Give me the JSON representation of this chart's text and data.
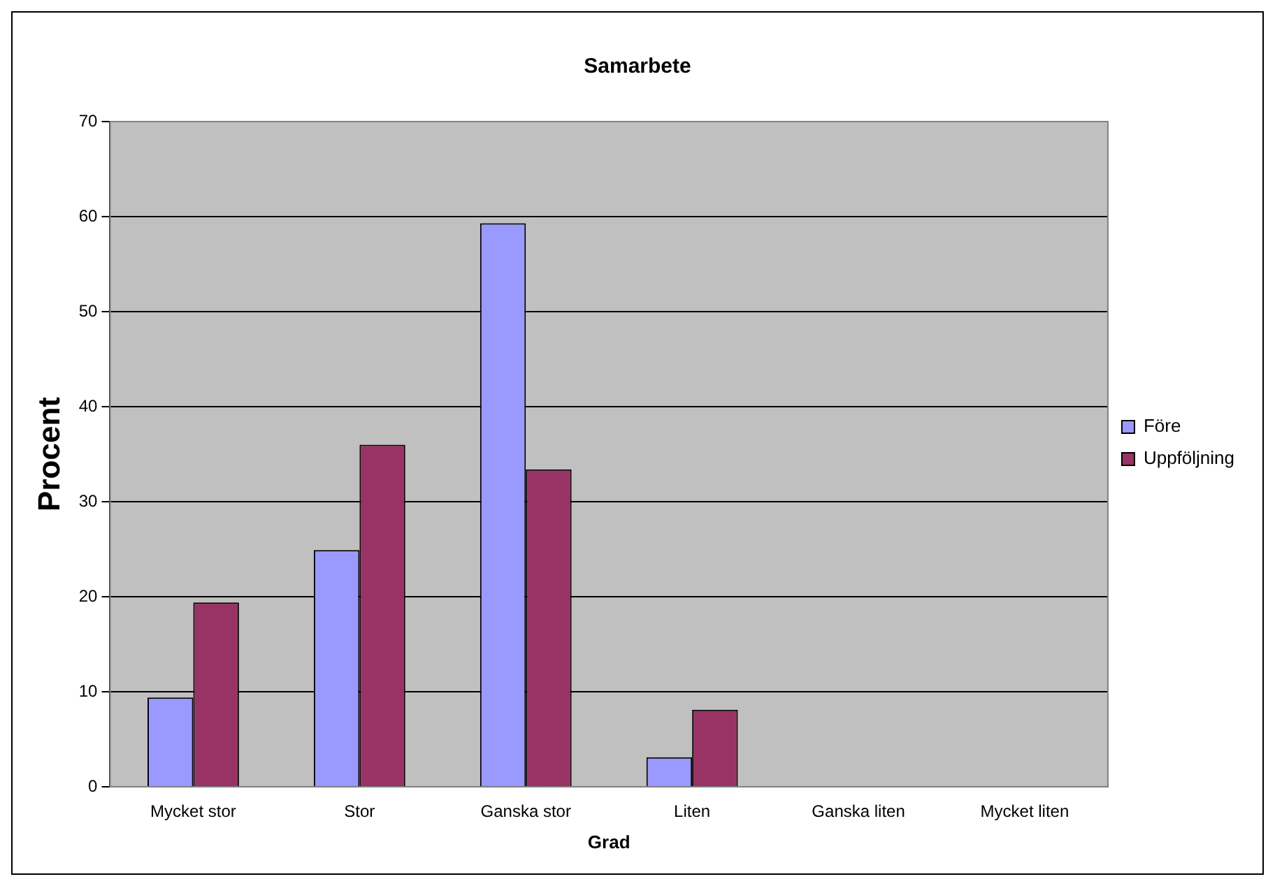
{
  "chart_data": {
    "type": "bar",
    "title": "Samarbete",
    "xlabel": "Grad",
    "ylabel": "Procent",
    "categories": [
      "Mycket stor",
      "Stor",
      "Ganska stor",
      "Liten",
      "Ganska liten",
      "Mycket liten"
    ],
    "series": [
      {
        "name": "Före",
        "color": "#9999ff",
        "values": [
          9.4,
          24.9,
          59.3,
          3.1,
          0,
          0
        ]
      },
      {
        "name": "Uppföljning",
        "color": "#993366",
        "values": [
          19.4,
          36.0,
          33.4,
          8.1,
          0,
          0
        ]
      }
    ],
    "ylim": [
      0,
      70
    ],
    "yticks": [
      0,
      10,
      20,
      30,
      40,
      50,
      60,
      70
    ],
    "grid": "y",
    "legend": "right"
  }
}
